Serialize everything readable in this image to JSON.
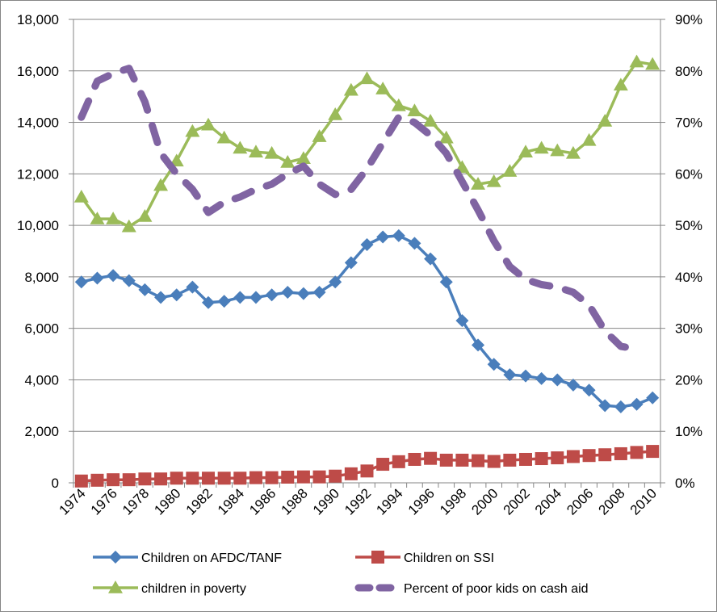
{
  "chart_data": {
    "type": "line",
    "title": "",
    "xlabel": "",
    "ylabel": "",
    "y2label": "",
    "grid": true,
    "legend_position": "bottom",
    "x": [
      1974,
      1975,
      1976,
      1977,
      1978,
      1979,
      1980,
      1981,
      1982,
      1983,
      1984,
      1985,
      1986,
      1987,
      1988,
      1989,
      1990,
      1991,
      1992,
      1993,
      1994,
      1995,
      1996,
      1997,
      1998,
      1999,
      2000,
      2001,
      2002,
      2003,
      2004,
      2005,
      2006,
      2007,
      2008,
      2009,
      2010
    ],
    "x_tick_labels": [
      "1974",
      "1976",
      "1978",
      "1980",
      "1982",
      "1984",
      "1986",
      "1988",
      "1990",
      "1992",
      "1994",
      "1996",
      "1998",
      "2000",
      "2002",
      "2004",
      "2006",
      "2008",
      "2010"
    ],
    "ylim": [
      0,
      18000
    ],
    "y_ticks": [
      0,
      2000,
      4000,
      6000,
      8000,
      10000,
      12000,
      14000,
      16000,
      18000
    ],
    "y_tick_labels": [
      "0",
      "2,000",
      "4,000",
      "6,000",
      "8,000",
      "10,000",
      "12,000",
      "14,000",
      "16,000",
      "18,000"
    ],
    "y2lim": [
      0,
      90
    ],
    "y2_ticks": [
      0,
      10,
      20,
      30,
      40,
      50,
      60,
      70,
      80,
      90
    ],
    "y2_tick_labels": [
      "0%",
      "10%",
      "20%",
      "30%",
      "40%",
      "50%",
      "60%",
      "70%",
      "80%",
      "90%"
    ],
    "series": [
      {
        "name": "Children on AFDC/TANF",
        "axis": "left",
        "color": "#4A7EBB",
        "marker": "diamond",
        "values": [
          7800,
          7950,
          8050,
          7850,
          7500,
          7200,
          7300,
          7600,
          7000,
          7050,
          7200,
          7200,
          7300,
          7400,
          7350,
          7400,
          7800,
          8550,
          9250,
          9550,
          9600,
          9300,
          8700,
          7800,
          6300,
          5350,
          4600,
          4200,
          4150,
          4050,
          4000,
          3800,
          3600,
          3000,
          2950,
          3050,
          3300
        ]
      },
      {
        "name": "Children on SSI",
        "axis": "left",
        "color": "#BE4B48",
        "marker": "square",
        "values": [
          70,
          100,
          120,
          120,
          150,
          150,
          180,
          180,
          180,
          180,
          180,
          200,
          200,
          220,
          230,
          230,
          260,
          350,
          460,
          720,
          820,
          910,
          950,
          880,
          880,
          860,
          830,
          880,
          910,
          940,
          970,
          1020,
          1060,
          1090,
          1130,
          1180,
          1220
        ]
      },
      {
        "name": "children in poverty",
        "axis": "left",
        "color": "#9BBB59",
        "marker": "triangle",
        "values": [
          11100,
          10250,
          10250,
          9950,
          10350,
          11550,
          12500,
          13650,
          13900,
          13400,
          13000,
          12850,
          12800,
          12450,
          12600,
          13450,
          14300,
          15250,
          15700,
          15300,
          14650,
          14450,
          14050,
          13400,
          12250,
          11600,
          11700,
          12100,
          12850,
          13000,
          12900,
          12800,
          13300,
          14050,
          15450,
          16350,
          16250
        ]
      },
      {
        "name": "Percent of poor kids on cash aid",
        "axis": "right",
        "color": "#8064A2",
        "marker": "none",
        "line_style": "dashed",
        "values": [
          71,
          78,
          79.5,
          80.5,
          74,
          64,
          60,
          57,
          52.5,
          54.5,
          55.5,
          57,
          58,
          60,
          61.5,
          58,
          56,
          57,
          61,
          66,
          71,
          70,
          67.5,
          64,
          58.5,
          53,
          47,
          42,
          39.5,
          38.5,
          38,
          37,
          34.5,
          29.5,
          26.5,
          26,
          null
        ]
      }
    ]
  }
}
